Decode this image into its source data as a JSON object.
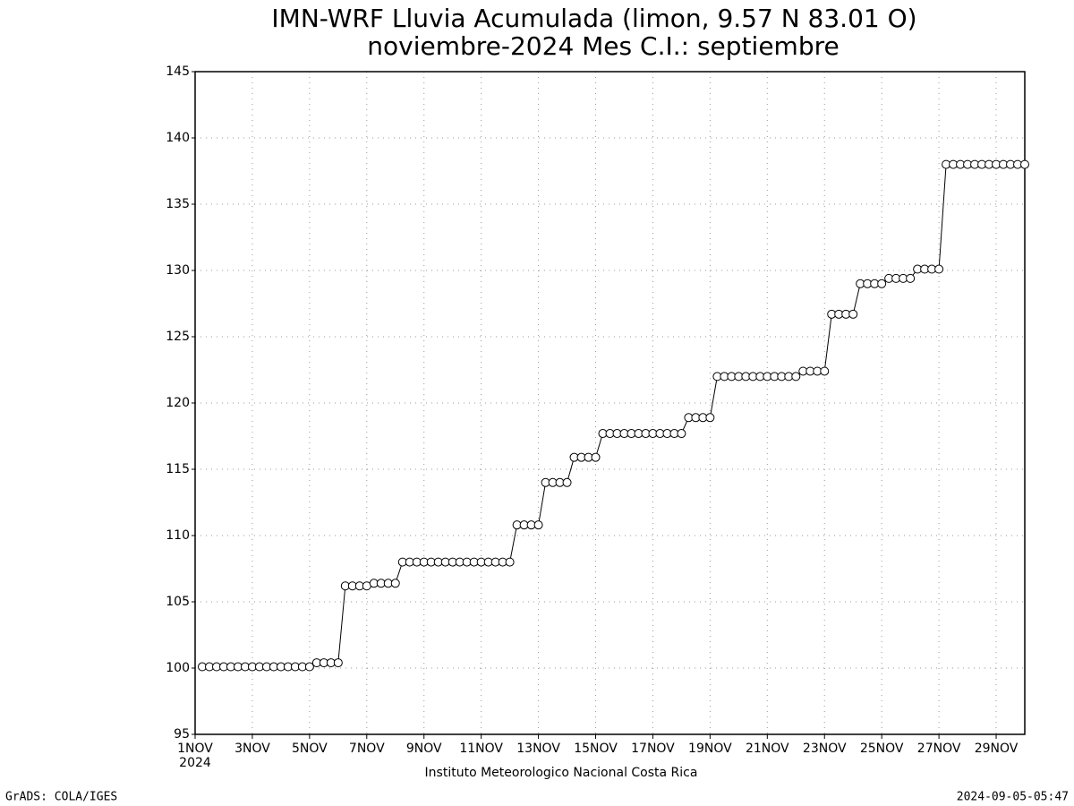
{
  "chart_data": {
    "type": "line",
    "title": "IMN-WRF  Lluvia Acumulada (limon, 9.57  N 83.01  O)",
    "subtitle": "noviembre-2024 Mes C.I.: septiembre",
    "x_year": "2024",
    "credit": "Instituto Meteorologico Nacional Costa Rica",
    "software": "GrADS: COLA/IGES",
    "timestamp": "2024-09-05-05:47",
    "color": "#000000",
    "marker_fill": "#ffffff",
    "grid": true,
    "xlim": [
      0,
      29
    ],
    "xticks": [
      {
        "value": 0,
        "label": "1NOV"
      },
      {
        "value": 2,
        "label": "3NOV"
      },
      {
        "value": 4,
        "label": "5NOV"
      },
      {
        "value": 6,
        "label": "7NOV"
      },
      {
        "value": 8,
        "label": "9NOV"
      },
      {
        "value": 10,
        "label": "11NOV"
      },
      {
        "value": 12,
        "label": "13NOV"
      },
      {
        "value": 14,
        "label": "15NOV"
      },
      {
        "value": 16,
        "label": "17NOV"
      },
      {
        "value": 18,
        "label": "19NOV"
      },
      {
        "value": 20,
        "label": "21NOV"
      },
      {
        "value": 22,
        "label": "23NOV"
      },
      {
        "value": 24,
        "label": "25NOV"
      },
      {
        "value": 26,
        "label": "27NOV"
      },
      {
        "value": 28,
        "label": "29NOV"
      }
    ],
    "ylim": [
      95,
      145
    ],
    "yticks": [
      95,
      100,
      105,
      110,
      115,
      120,
      125,
      130,
      135,
      140,
      145
    ],
    "x": [
      0.25,
      0.5,
      0.75,
      1,
      1.25,
      1.5,
      1.75,
      2,
      2.25,
      2.5,
      2.75,
      3,
      3.25,
      3.5,
      3.75,
      4,
      4.25,
      4.5,
      4.75,
      5,
      5.25,
      5.5,
      5.75,
      6,
      6.25,
      6.5,
      6.75,
      7,
      7.25,
      7.5,
      7.75,
      8,
      8.25,
      8.5,
      8.75,
      9,
      9.25,
      9.5,
      9.75,
      10,
      10.25,
      10.5,
      10.75,
      11,
      11.25,
      11.5,
      11.75,
      12,
      12.25,
      12.5,
      12.75,
      13,
      13.25,
      13.5,
      13.75,
      14,
      14.25,
      14.5,
      14.75,
      15,
      15.25,
      15.5,
      15.75,
      16,
      16.25,
      16.5,
      16.75,
      17,
      17.25,
      17.5,
      17.75,
      18,
      18.25,
      18.5,
      18.75,
      19,
      19.25,
      19.5,
      19.75,
      20,
      20.25,
      20.5,
      20.75,
      21,
      21.25,
      21.5,
      21.75,
      22,
      22.25,
      22.5,
      22.75,
      23,
      23.25,
      23.5,
      23.75,
      24,
      24.25,
      24.5,
      24.75,
      25,
      25.25,
      25.5,
      25.75,
      26,
      26.25,
      26.5,
      26.75,
      27,
      27.25,
      27.5,
      27.75,
      28,
      28.25,
      28.5,
      28.75,
      29
    ],
    "values": [
      100.1,
      100.1,
      100.1,
      100.1,
      100.1,
      100.1,
      100.1,
      100.1,
      100.1,
      100.1,
      100.1,
      100.1,
      100.1,
      100.1,
      100.1,
      100.1,
      100.4,
      100.4,
      100.4,
      100.4,
      106.2,
      106.2,
      106.2,
      106.2,
      106.4,
      106.4,
      106.4,
      106.4,
      108,
      108,
      108,
      108,
      108,
      108,
      108,
      108,
      108,
      108,
      108,
      108,
      108,
      108,
      108,
      108,
      110.8,
      110.8,
      110.8,
      110.8,
      114,
      114,
      114,
      114,
      115.9,
      115.9,
      115.9,
      115.9,
      117.7,
      117.7,
      117.7,
      117.7,
      117.7,
      117.7,
      117.7,
      117.7,
      117.7,
      117.7,
      117.7,
      117.7,
      118.9,
      118.9,
      118.9,
      118.9,
      122,
      122,
      122,
      122,
      122,
      122,
      122,
      122,
      122,
      122,
      122,
      122,
      122.4,
      122.4,
      122.4,
      122.4,
      126.7,
      126.7,
      126.7,
      126.7,
      129,
      129,
      129,
      129,
      129.4,
      129.4,
      129.4,
      129.4,
      130.1,
      130.1,
      130.1,
      130.1,
      138,
      138,
      138,
      138,
      138,
      138,
      138,
      138,
      138,
      138,
      138,
      138
    ]
  }
}
